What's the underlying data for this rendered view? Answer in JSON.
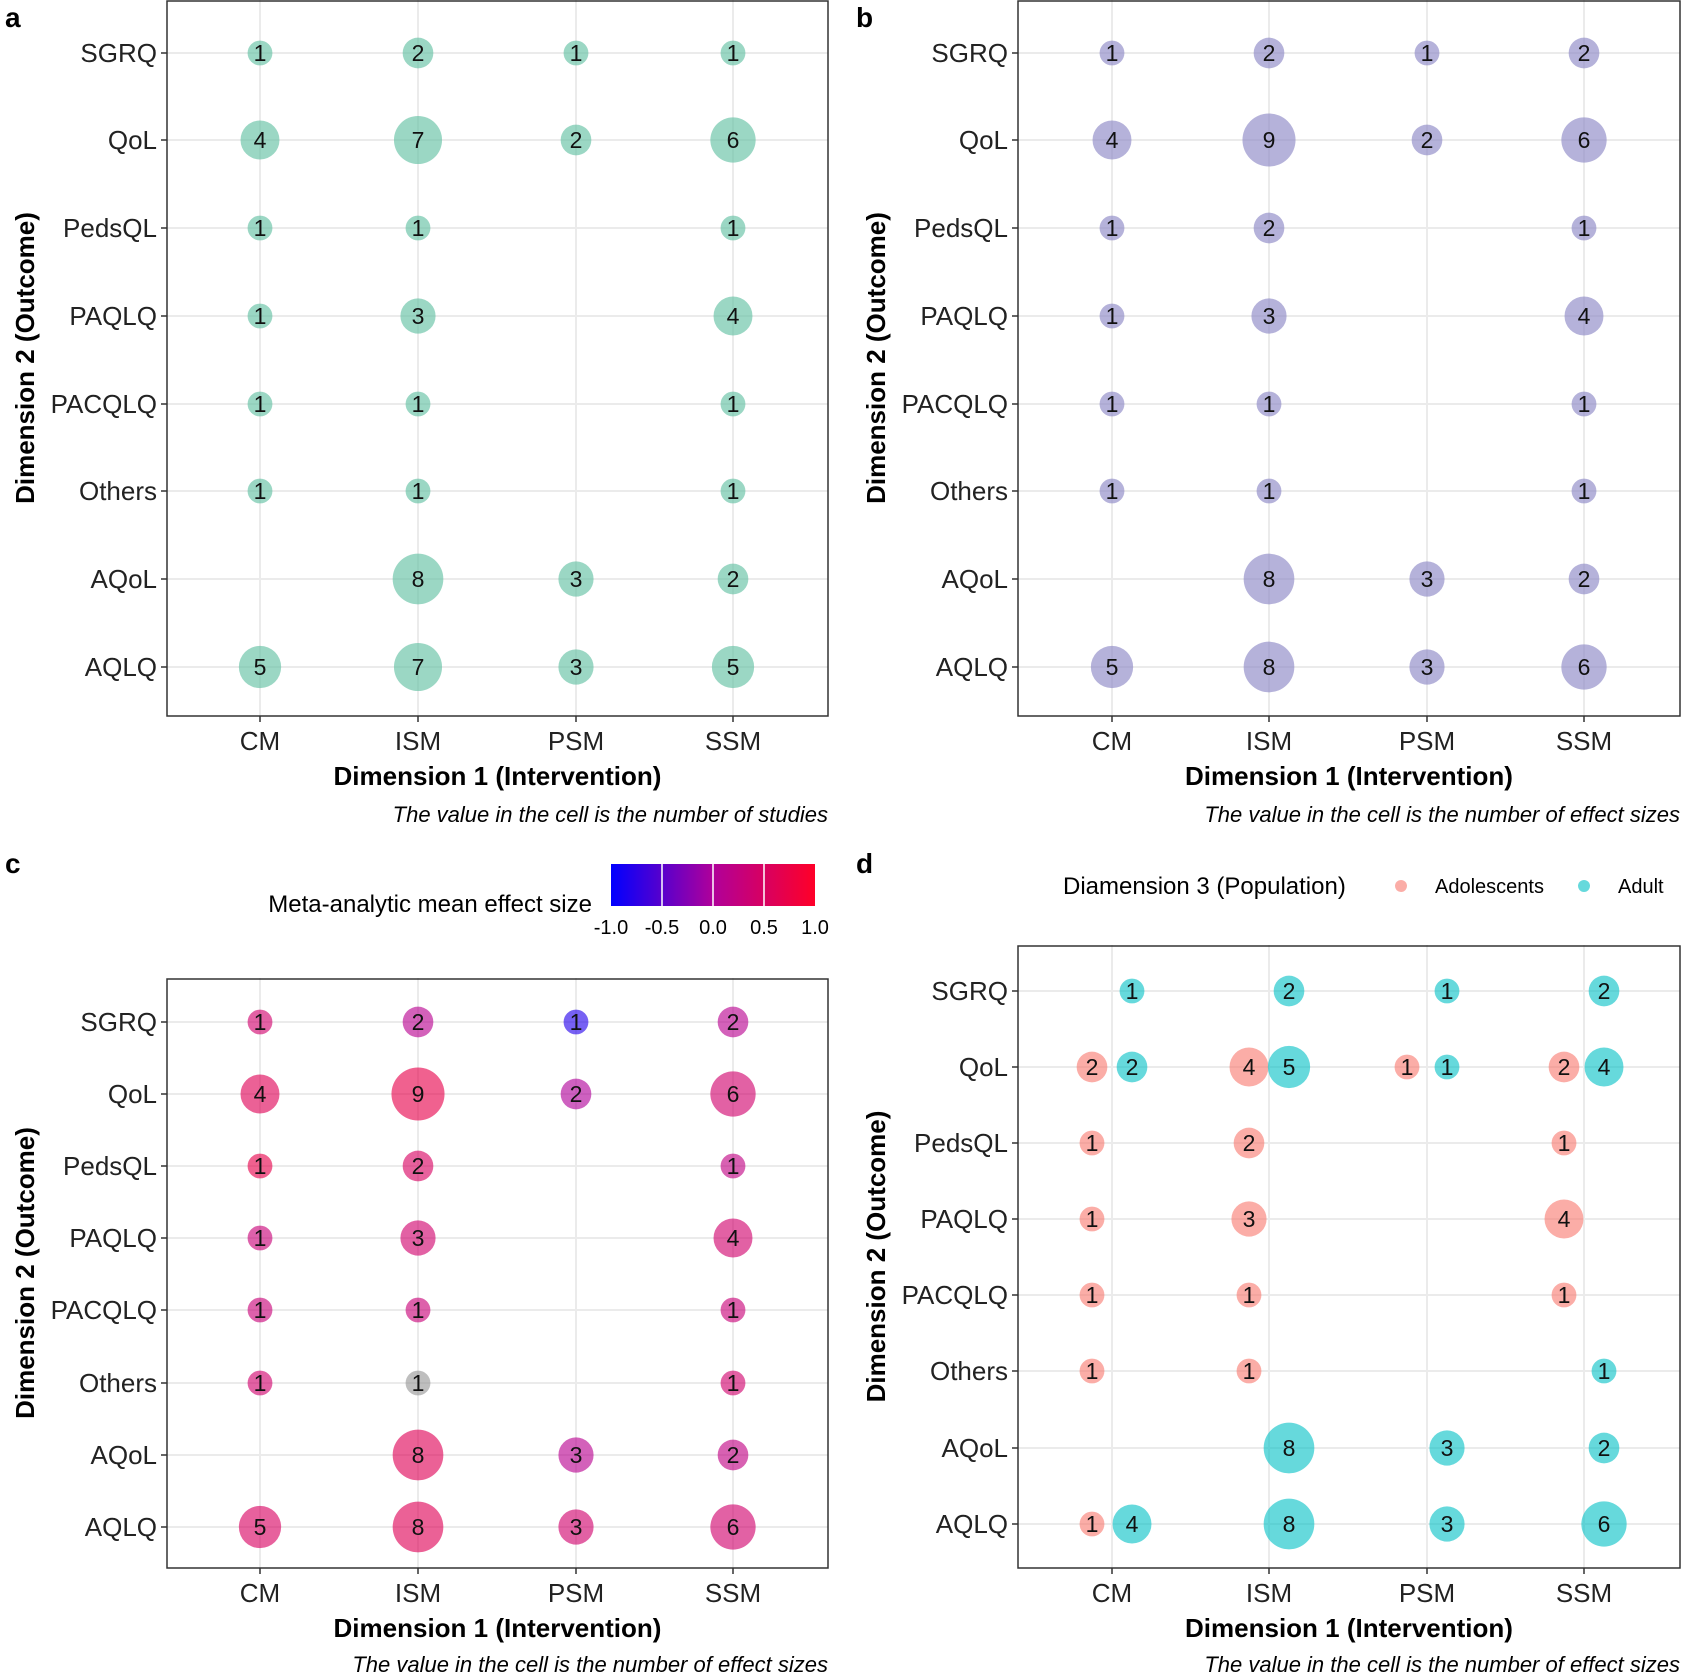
{
  "chart_data": [
    {
      "panel": "a",
      "type": "scatter",
      "xlabel": "Dimension 1 (Intervention)",
      "ylabel": "Dimension 2 (Outcome)",
      "caption": "The value in the cell is the number of studies",
      "x_categories": [
        "CM",
        "ISM",
        "PSM",
        "SSM"
      ],
      "y_categories": [
        "SGRQ",
        "QoL",
        "PedsQL",
        "PAQLQ",
        "PACQLQ",
        "Others",
        "AQoL",
        "AQLQ"
      ],
      "fill": "#66C2A5",
      "points": [
        [
          "CM",
          "SGRQ",
          1
        ],
        [
          "ISM",
          "SGRQ",
          2
        ],
        [
          "PSM",
          "SGRQ",
          1
        ],
        [
          "SSM",
          "SGRQ",
          1
        ],
        [
          "CM",
          "QoL",
          4
        ],
        [
          "ISM",
          "QoL",
          7
        ],
        [
          "PSM",
          "QoL",
          2
        ],
        [
          "SSM",
          "QoL",
          6
        ],
        [
          "CM",
          "PedsQL",
          1
        ],
        [
          "ISM",
          "PedsQL",
          1
        ],
        [
          "SSM",
          "PedsQL",
          1
        ],
        [
          "CM",
          "PAQLQ",
          1
        ],
        [
          "ISM",
          "PAQLQ",
          3
        ],
        [
          "SSM",
          "PAQLQ",
          4
        ],
        [
          "CM",
          "PACQLQ",
          1
        ],
        [
          "ISM",
          "PACQLQ",
          1
        ],
        [
          "SSM",
          "PACQLQ",
          1
        ],
        [
          "CM",
          "Others",
          1
        ],
        [
          "ISM",
          "Others",
          1
        ],
        [
          "SSM",
          "Others",
          1
        ],
        [
          "ISM",
          "AQoL",
          8
        ],
        [
          "PSM",
          "AQoL",
          3
        ],
        [
          "SSM",
          "AQoL",
          2
        ],
        [
          "CM",
          "AQLQ",
          5
        ],
        [
          "ISM",
          "AQLQ",
          7
        ],
        [
          "PSM",
          "AQLQ",
          3
        ],
        [
          "SSM",
          "AQLQ",
          5
        ]
      ]
    },
    {
      "panel": "b",
      "type": "scatter",
      "xlabel": "Dimension 1 (Intervention)",
      "ylabel": "Dimension 2 (Outcome)",
      "caption": "The value in the cell is the number of effect sizes",
      "x_categories": [
        "CM",
        "ISM",
        "PSM",
        "SSM"
      ],
      "y_categories": [
        "SGRQ",
        "QoL",
        "PedsQL",
        "PAQLQ",
        "PACQLQ",
        "Others",
        "AQoL",
        "AQLQ"
      ],
      "fill": "#8D88C6",
      "points": [
        [
          "CM",
          "SGRQ",
          1
        ],
        [
          "ISM",
          "SGRQ",
          2
        ],
        [
          "PSM",
          "SGRQ",
          1
        ],
        [
          "SSM",
          "SGRQ",
          2
        ],
        [
          "CM",
          "QoL",
          4
        ],
        [
          "ISM",
          "QoL",
          9
        ],
        [
          "PSM",
          "QoL",
          2
        ],
        [
          "SSM",
          "QoL",
          6
        ],
        [
          "CM",
          "PedsQL",
          1
        ],
        [
          "ISM",
          "PedsQL",
          2
        ],
        [
          "SSM",
          "PedsQL",
          1
        ],
        [
          "CM",
          "PAQLQ",
          1
        ],
        [
          "ISM",
          "PAQLQ",
          3
        ],
        [
          "SSM",
          "PAQLQ",
          4
        ],
        [
          "CM",
          "PACQLQ",
          1
        ],
        [
          "ISM",
          "PACQLQ",
          1
        ],
        [
          "SSM",
          "PACQLQ",
          1
        ],
        [
          "CM",
          "Others",
          1
        ],
        [
          "ISM",
          "Others",
          1
        ],
        [
          "SSM",
          "Others",
          1
        ],
        [
          "ISM",
          "AQoL",
          8
        ],
        [
          "PSM",
          "AQoL",
          3
        ],
        [
          "SSM",
          "AQoL",
          2
        ],
        [
          "CM",
          "AQLQ",
          5
        ],
        [
          "ISM",
          "AQLQ",
          8
        ],
        [
          "PSM",
          "AQLQ",
          3
        ],
        [
          "SSM",
          "AQLQ",
          6
        ]
      ]
    },
    {
      "panel": "c",
      "type": "scatter",
      "xlabel": "Dimension 1 (Intervention)",
      "ylabel": "Dimension 2 (Outcome)",
      "caption": "The value in the cell is the number of effect sizes",
      "x_categories": [
        "CM",
        "ISM",
        "PSM",
        "SSM"
      ],
      "y_categories": [
        "SGRQ",
        "QoL",
        "PedsQL",
        "PAQLQ",
        "PACQLQ",
        "Others",
        "AQoL",
        "AQLQ"
      ],
      "legend": {
        "title": "Meta-analytic mean effect size",
        "ticks": [
          "-1.0",
          "-0.5",
          "0.0",
          "0.5",
          "1.0"
        ],
        "range": [
          -1,
          1
        ],
        "low": "#0000FF",
        "high": "#FF0000",
        "na": "#999999"
      },
      "points": [
        [
          "CM",
          "SGRQ",
          1,
          0.4
        ],
        [
          "ISM",
          "SGRQ",
          2,
          0.1
        ],
        [
          "PSM",
          "SGRQ",
          1,
          -0.8
        ],
        [
          "SSM",
          "SGRQ",
          2,
          0.1
        ],
        [
          "CM",
          "QoL",
          4,
          0.6
        ],
        [
          "ISM",
          "QoL",
          9,
          0.7
        ],
        [
          "PSM",
          "QoL",
          2,
          0.0
        ],
        [
          "SSM",
          "QoL",
          6,
          0.4
        ],
        [
          "CM",
          "PedsQL",
          1,
          0.7
        ],
        [
          "ISM",
          "PedsQL",
          2,
          0.5
        ],
        [
          "SSM",
          "PedsQL",
          1,
          0.2
        ],
        [
          "CM",
          "PAQLQ",
          1,
          0.3
        ],
        [
          "ISM",
          "PAQLQ",
          3,
          0.4
        ],
        [
          "SSM",
          "PAQLQ",
          4,
          0.4
        ],
        [
          "CM",
          "PACQLQ",
          1,
          0.3
        ],
        [
          "ISM",
          "PACQLQ",
          1,
          0.3
        ],
        [
          "SSM",
          "PACQLQ",
          1,
          0.3
        ],
        [
          "CM",
          "Others",
          1,
          0.4
        ],
        [
          "ISM",
          "Others",
          1,
          null
        ],
        [
          "SSM",
          "Others",
          1,
          0.4
        ],
        [
          "ISM",
          "AQoL",
          8,
          0.6
        ],
        [
          "PSM",
          "AQoL",
          3,
          0.1
        ],
        [
          "SSM",
          "AQoL",
          2,
          0.2
        ],
        [
          "CM",
          "AQLQ",
          5,
          0.5
        ],
        [
          "ISM",
          "AQLQ",
          8,
          0.6
        ],
        [
          "PSM",
          "AQLQ",
          3,
          0.4
        ],
        [
          "SSM",
          "AQLQ",
          6,
          0.4
        ]
      ]
    },
    {
      "panel": "d",
      "type": "scatter",
      "xlabel": "Dimension 1 (Intervention)",
      "ylabel": "Dimension 2 (Outcome)",
      "caption": "The value in the cell is the number of effect sizes",
      "x_categories": [
        "CM",
        "ISM",
        "PSM",
        "SSM"
      ],
      "y_categories": [
        "SGRQ",
        "QoL",
        "PedsQL",
        "PAQLQ",
        "PACQLQ",
        "Others",
        "AQoL",
        "AQLQ"
      ],
      "legend": {
        "title": "Diamension 3 (Population)",
        "groups": [
          {
            "name": "Adolescents",
            "color": "#F8766D"
          },
          {
            "name": "Adult",
            "color": "#00BFC4"
          }
        ]
      },
      "points": [
        [
          "CM",
          "SGRQ",
          1,
          "Adult"
        ],
        [
          "ISM",
          "SGRQ",
          2,
          "Adult"
        ],
        [
          "PSM",
          "SGRQ",
          1,
          "Adult"
        ],
        [
          "SSM",
          "SGRQ",
          2,
          "Adult"
        ],
        [
          "CM",
          "QoL",
          2,
          "Adolescents"
        ],
        [
          "CM",
          "QoL",
          2,
          "Adult"
        ],
        [
          "ISM",
          "QoL",
          4,
          "Adolescents"
        ],
        [
          "ISM",
          "QoL",
          5,
          "Adult"
        ],
        [
          "PSM",
          "QoL",
          1,
          "Adolescents"
        ],
        [
          "PSM",
          "QoL",
          1,
          "Adult"
        ],
        [
          "SSM",
          "QoL",
          2,
          "Adolescents"
        ],
        [
          "SSM",
          "QoL",
          4,
          "Adult"
        ],
        [
          "CM",
          "PedsQL",
          1,
          "Adolescents"
        ],
        [
          "ISM",
          "PedsQL",
          2,
          "Adolescents"
        ],
        [
          "SSM",
          "PedsQL",
          1,
          "Adolescents"
        ],
        [
          "CM",
          "PAQLQ",
          1,
          "Adolescents"
        ],
        [
          "ISM",
          "PAQLQ",
          3,
          "Adolescents"
        ],
        [
          "SSM",
          "PAQLQ",
          4,
          "Adolescents"
        ],
        [
          "CM",
          "PACQLQ",
          1,
          "Adolescents"
        ],
        [
          "ISM",
          "PACQLQ",
          1,
          "Adolescents"
        ],
        [
          "SSM",
          "PACQLQ",
          1,
          "Adolescents"
        ],
        [
          "CM",
          "Others",
          1,
          "Adolescents"
        ],
        [
          "ISM",
          "Others",
          1,
          "Adolescents"
        ],
        [
          "SSM",
          "Others",
          1,
          "Adult"
        ],
        [
          "ISM",
          "AQoL",
          8,
          "Adult"
        ],
        [
          "PSM",
          "AQoL",
          3,
          "Adult"
        ],
        [
          "SSM",
          "AQoL",
          2,
          "Adult"
        ],
        [
          "CM",
          "AQLQ",
          1,
          "Adolescents"
        ],
        [
          "CM",
          "AQLQ",
          4,
          "Adult"
        ],
        [
          "ISM",
          "AQLQ",
          8,
          "Adult"
        ],
        [
          "PSM",
          "AQLQ",
          3,
          "Adult"
        ],
        [
          "SSM",
          "AQLQ",
          6,
          "Adult"
        ]
      ]
    }
  ]
}
